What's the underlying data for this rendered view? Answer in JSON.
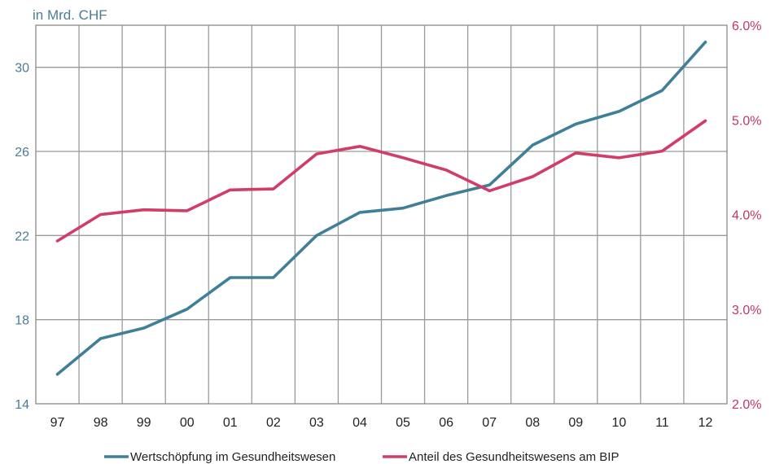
{
  "chart_data": {
    "type": "line",
    "ylabel_left": "in Mrd. CHF",
    "categories": [
      "97",
      "98",
      "99",
      "00",
      "01",
      "02",
      "03",
      "04",
      "05",
      "06",
      "07",
      "08",
      "09",
      "10",
      "11",
      "12"
    ],
    "y_left": {
      "min": 14,
      "max": 32,
      "ticks": [
        "14",
        "18",
        "22",
        "26",
        "30"
      ]
    },
    "y_right": {
      "min": 2.0,
      "max": 6.0,
      "ticks": [
        "2.0%",
        "3.0%",
        "4.0%",
        "5.0%",
        "6.0%"
      ]
    },
    "grid": true,
    "legend_position": "bottom",
    "series": [
      {
        "name": "Wertschöpfung im Gesundheitswesen",
        "axis": "left",
        "color": "#3f7f98",
        "values": [
          15.4,
          17.1,
          17.6,
          18.5,
          20.0,
          20.0,
          22.0,
          23.1,
          23.3,
          23.9,
          24.4,
          26.3,
          27.3,
          27.9,
          28.9,
          31.2
        ]
      },
      {
        "name": "Anteil des Gesundheitswesens am BIP",
        "axis": "right",
        "color": "#d23c69",
        "values": [
          3.72,
          4.0,
          4.05,
          4.04,
          4.26,
          4.27,
          4.64,
          4.72,
          4.6,
          4.47,
          4.25,
          4.4,
          4.65,
          4.6,
          4.67,
          4.99
        ]
      }
    ]
  }
}
